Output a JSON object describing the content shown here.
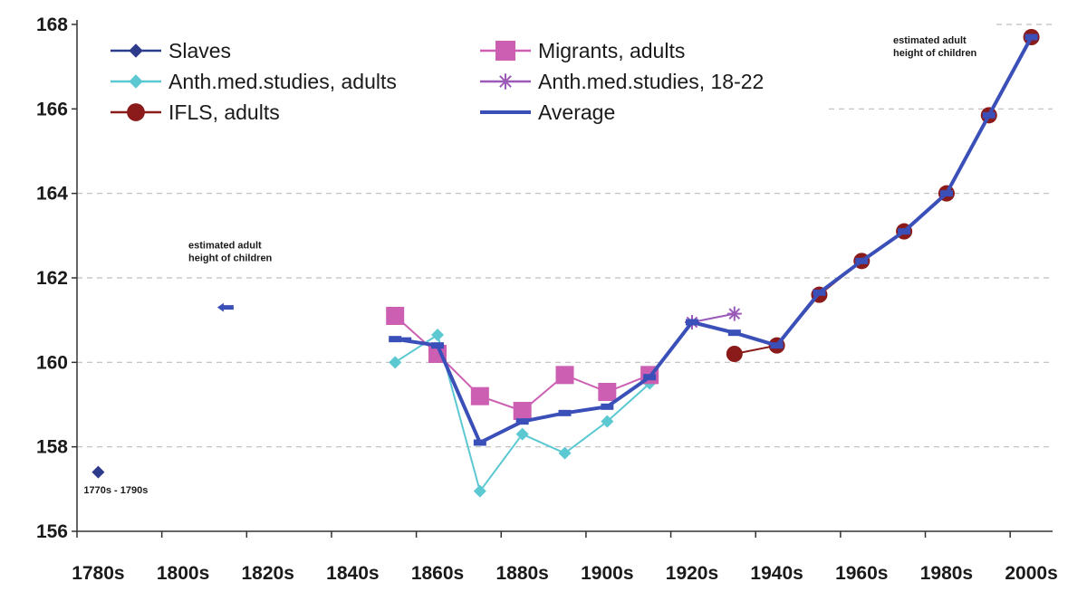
{
  "chart_data": {
    "type": "line",
    "x_categories": [
      "1780s",
      "1790s",
      "1800s",
      "1810s",
      "1820s",
      "1830s",
      "1840s",
      "1850s",
      "1860s",
      "1870s",
      "1880s",
      "1890s",
      "1900s",
      "1910s",
      "1920s",
      "1930s",
      "1940s",
      "1950s",
      "1960s",
      "1970s",
      "1980s",
      "1990s",
      "2000s"
    ],
    "x_tick_labels": [
      "1780s",
      "1800s",
      "1820s",
      "1840s",
      "1860s",
      "1880s",
      "1900s",
      "1920s",
      "1940s",
      "1960s",
      "1980s",
      "2000s"
    ],
    "y_ticks": [
      156,
      158,
      160,
      162,
      164,
      166,
      168
    ],
    "ylim": [
      156,
      168
    ],
    "grid": "horizontal dashed",
    "legend_placement": "top-left",
    "series": [
      {
        "name": "Slaves",
        "color": "#2e3a8c",
        "marker": "diamond",
        "points": [
          {
            "x": "1780s",
            "y": 157.4
          }
        ]
      },
      {
        "name": "Anth.med.studies, adults",
        "color": "#5bc8d2",
        "marker": "diamond",
        "points": [
          {
            "x": "1850s",
            "y": 160.0
          },
          {
            "x": "1860s",
            "y": 160.65
          },
          {
            "x": "1870s",
            "y": 156.95
          },
          {
            "x": "1880s",
            "y": 158.3
          },
          {
            "x": "1890s",
            "y": 157.85
          },
          {
            "x": "1900s",
            "y": 158.6
          },
          {
            "x": "1910s",
            "y": 159.5
          }
        ]
      },
      {
        "name": "IFLS, adults",
        "color": "#8b1a1a",
        "marker": "circle",
        "points": [
          {
            "x": "1930s",
            "y": 160.2
          },
          {
            "x": "1940s",
            "y": 160.4
          },
          {
            "x": "1950s",
            "y": 161.6
          },
          {
            "x": "1960s",
            "y": 162.4
          },
          {
            "x": "1970s",
            "y": 163.1
          },
          {
            "x": "1980s",
            "y": 164.0
          },
          {
            "x": "1990s",
            "y": 165.85
          },
          {
            "x": "2000s",
            "y": 167.7
          }
        ]
      },
      {
        "name": "Migrants, adults",
        "color": "#cc5fb2",
        "marker": "square",
        "points": [
          {
            "x": "1850s",
            "y": 161.1
          },
          {
            "x": "1860s",
            "y": 160.2
          },
          {
            "x": "1870s",
            "y": 159.2
          },
          {
            "x": "1880s",
            "y": 158.85
          },
          {
            "x": "1890s",
            "y": 159.7
          },
          {
            "x": "1900s",
            "y": 159.3
          },
          {
            "x": "1910s",
            "y": 159.7
          }
        ]
      },
      {
        "name": "Anth.med.studies, 18-22",
        "color": "#9b5ab8",
        "marker": "star",
        "points": [
          {
            "x": "1920s",
            "y": 160.95
          },
          {
            "x": "1930s",
            "y": 161.15
          }
        ]
      },
      {
        "name": "Average",
        "color": "#3a4fb8",
        "marker": "dash",
        "points": [
          {
            "x": "1780s",
            "y": 157.4
          },
          {
            "x": "1810s",
            "y": 161.3
          },
          {
            "x": "1850s",
            "y": 160.55
          },
          {
            "x": "1860s",
            "y": 160.4
          },
          {
            "x": "1870s",
            "y": 158.1
          },
          {
            "x": "1880s",
            "y": 158.6
          },
          {
            "x": "1890s",
            "y": 158.8
          },
          {
            "x": "1900s",
            "y": 158.95
          },
          {
            "x": "1910s",
            "y": 159.65
          },
          {
            "x": "1920s",
            "y": 160.95
          },
          {
            "x": "1930s",
            "y": 160.7
          },
          {
            "x": "1940s",
            "y": 160.4
          },
          {
            "x": "1950s",
            "y": 161.65
          },
          {
            "x": "1960s",
            "y": 162.4
          },
          {
            "x": "1970s",
            "y": 163.1
          },
          {
            "x": "1980s",
            "y": 164.0
          },
          {
            "x": "1990s",
            "y": 165.85
          },
          {
            "x": "2000s",
            "y": 167.7
          }
        ],
        "isolated": [
          "1780s",
          "1810s"
        ]
      }
    ],
    "annotations": [
      {
        "name": "annotation-1770s-1790s",
        "lines": [
          "1770s - 1790s"
        ],
        "x": "1780s",
        "y": 156.9
      },
      {
        "name": "annotation-estimated-left",
        "lines": [
          "estimated adult",
          "height of children"
        ],
        "x": "1810s",
        "y": 162.7
      },
      {
        "name": "annotation-estimated-right",
        "lines": [
          "estimated adult",
          "height of children"
        ],
        "x": "1980s",
        "y": 167.55
      }
    ]
  }
}
